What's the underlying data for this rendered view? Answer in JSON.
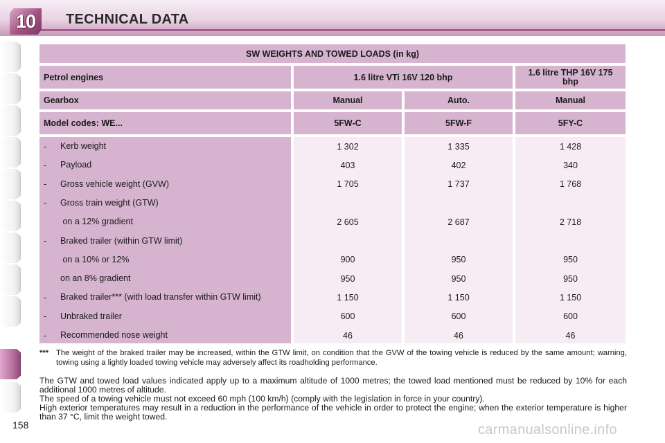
{
  "header": {
    "chapter_number": "10",
    "title": "TECHNICAL DATA"
  },
  "table": {
    "title": "SW WEIGHTS AND TOWED LOADS (in kg)",
    "engines_label": "Petrol engines",
    "engine_1": "1.6 litre VTi 16V 120 bhp",
    "engine_2": "1.6 litre THP 16V 175 bhp",
    "gearbox_label": "Gearbox",
    "gearboxes": [
      "Manual",
      "Auto.",
      "Manual"
    ],
    "model_codes_label": "Model codes: WE...",
    "model_codes": [
      "5FW-C",
      "5FW-F",
      "5FY-C"
    ],
    "rows": [
      {
        "dash": "-",
        "label": "Kerb weight",
        "values": [
          "1 302",
          "1 335",
          "1 428"
        ]
      },
      {
        "dash": "-",
        "label": "Payload",
        "values": [
          "403",
          "402",
          "340"
        ]
      },
      {
        "dash": "-",
        "label": "Gross vehicle weight (GVW)",
        "values": [
          "1 705",
          "1 737",
          "1 768"
        ]
      },
      {
        "dash": "-",
        "label": "Gross train weight (GTW)",
        "values": [
          "",
          "",
          ""
        ]
      },
      {
        "dash": "",
        "label": " on a 12% gradient",
        "values": [
          "2 605",
          "2 687",
          "2 718"
        ]
      },
      {
        "dash": "-",
        "label": "Braked trailer (within GTW limit)",
        "values": [
          "",
          "",
          ""
        ]
      },
      {
        "dash": "",
        "label": " on a 10% or 12%",
        "values": [
          "900",
          "950",
          "950"
        ]
      },
      {
        "dash": "",
        "label": "on an 8% gradient",
        "values": [
          "950",
          "950",
          "950"
        ]
      },
      {
        "dash": "-",
        "label": "Braked trailer*** (with load transfer within GTW limit)",
        "values": [
          "1 150",
          "1 150",
          "1 150"
        ]
      },
      {
        "dash": "-",
        "label": "Unbraked trailer",
        "values": [
          "600",
          "600",
          "600"
        ]
      },
      {
        "dash": "-",
        "label": "Recommended nose weight",
        "values": [
          "46",
          "46",
          "46"
        ]
      }
    ]
  },
  "footnote": {
    "mark": "***",
    "text": "The weight of the braked trailer may be increased, within the GTW limit, on condition that the GVW of the towing vehicle is reduced by the same amount; warning, towing using a lightly loaded towing vehicle may adversely affect its roadholding performance."
  },
  "notes": [
    "The GTW and towed load values indicated apply up to a maximum altitude of 1000 metres; the towed load mentioned must be reduced by 10% for each additional 1000 metres of altitude.",
    "The speed of a towing vehicle must not exceed 60 mph (100 km/h) (comply with the legislation in force in your country).",
    "High exterior temperatures may result in a reduction in the performance of the vehicle in order to protect the engine; when the exterior temperature is higher than 37 °C, limit the weight towed."
  ],
  "page_number": "158",
  "watermark": "carmanualsonline.info",
  "colors": {
    "header_purple": "#a45a8c",
    "table_header": "#d6b4d0",
    "table_value_bg": "#f7ecf4"
  }
}
